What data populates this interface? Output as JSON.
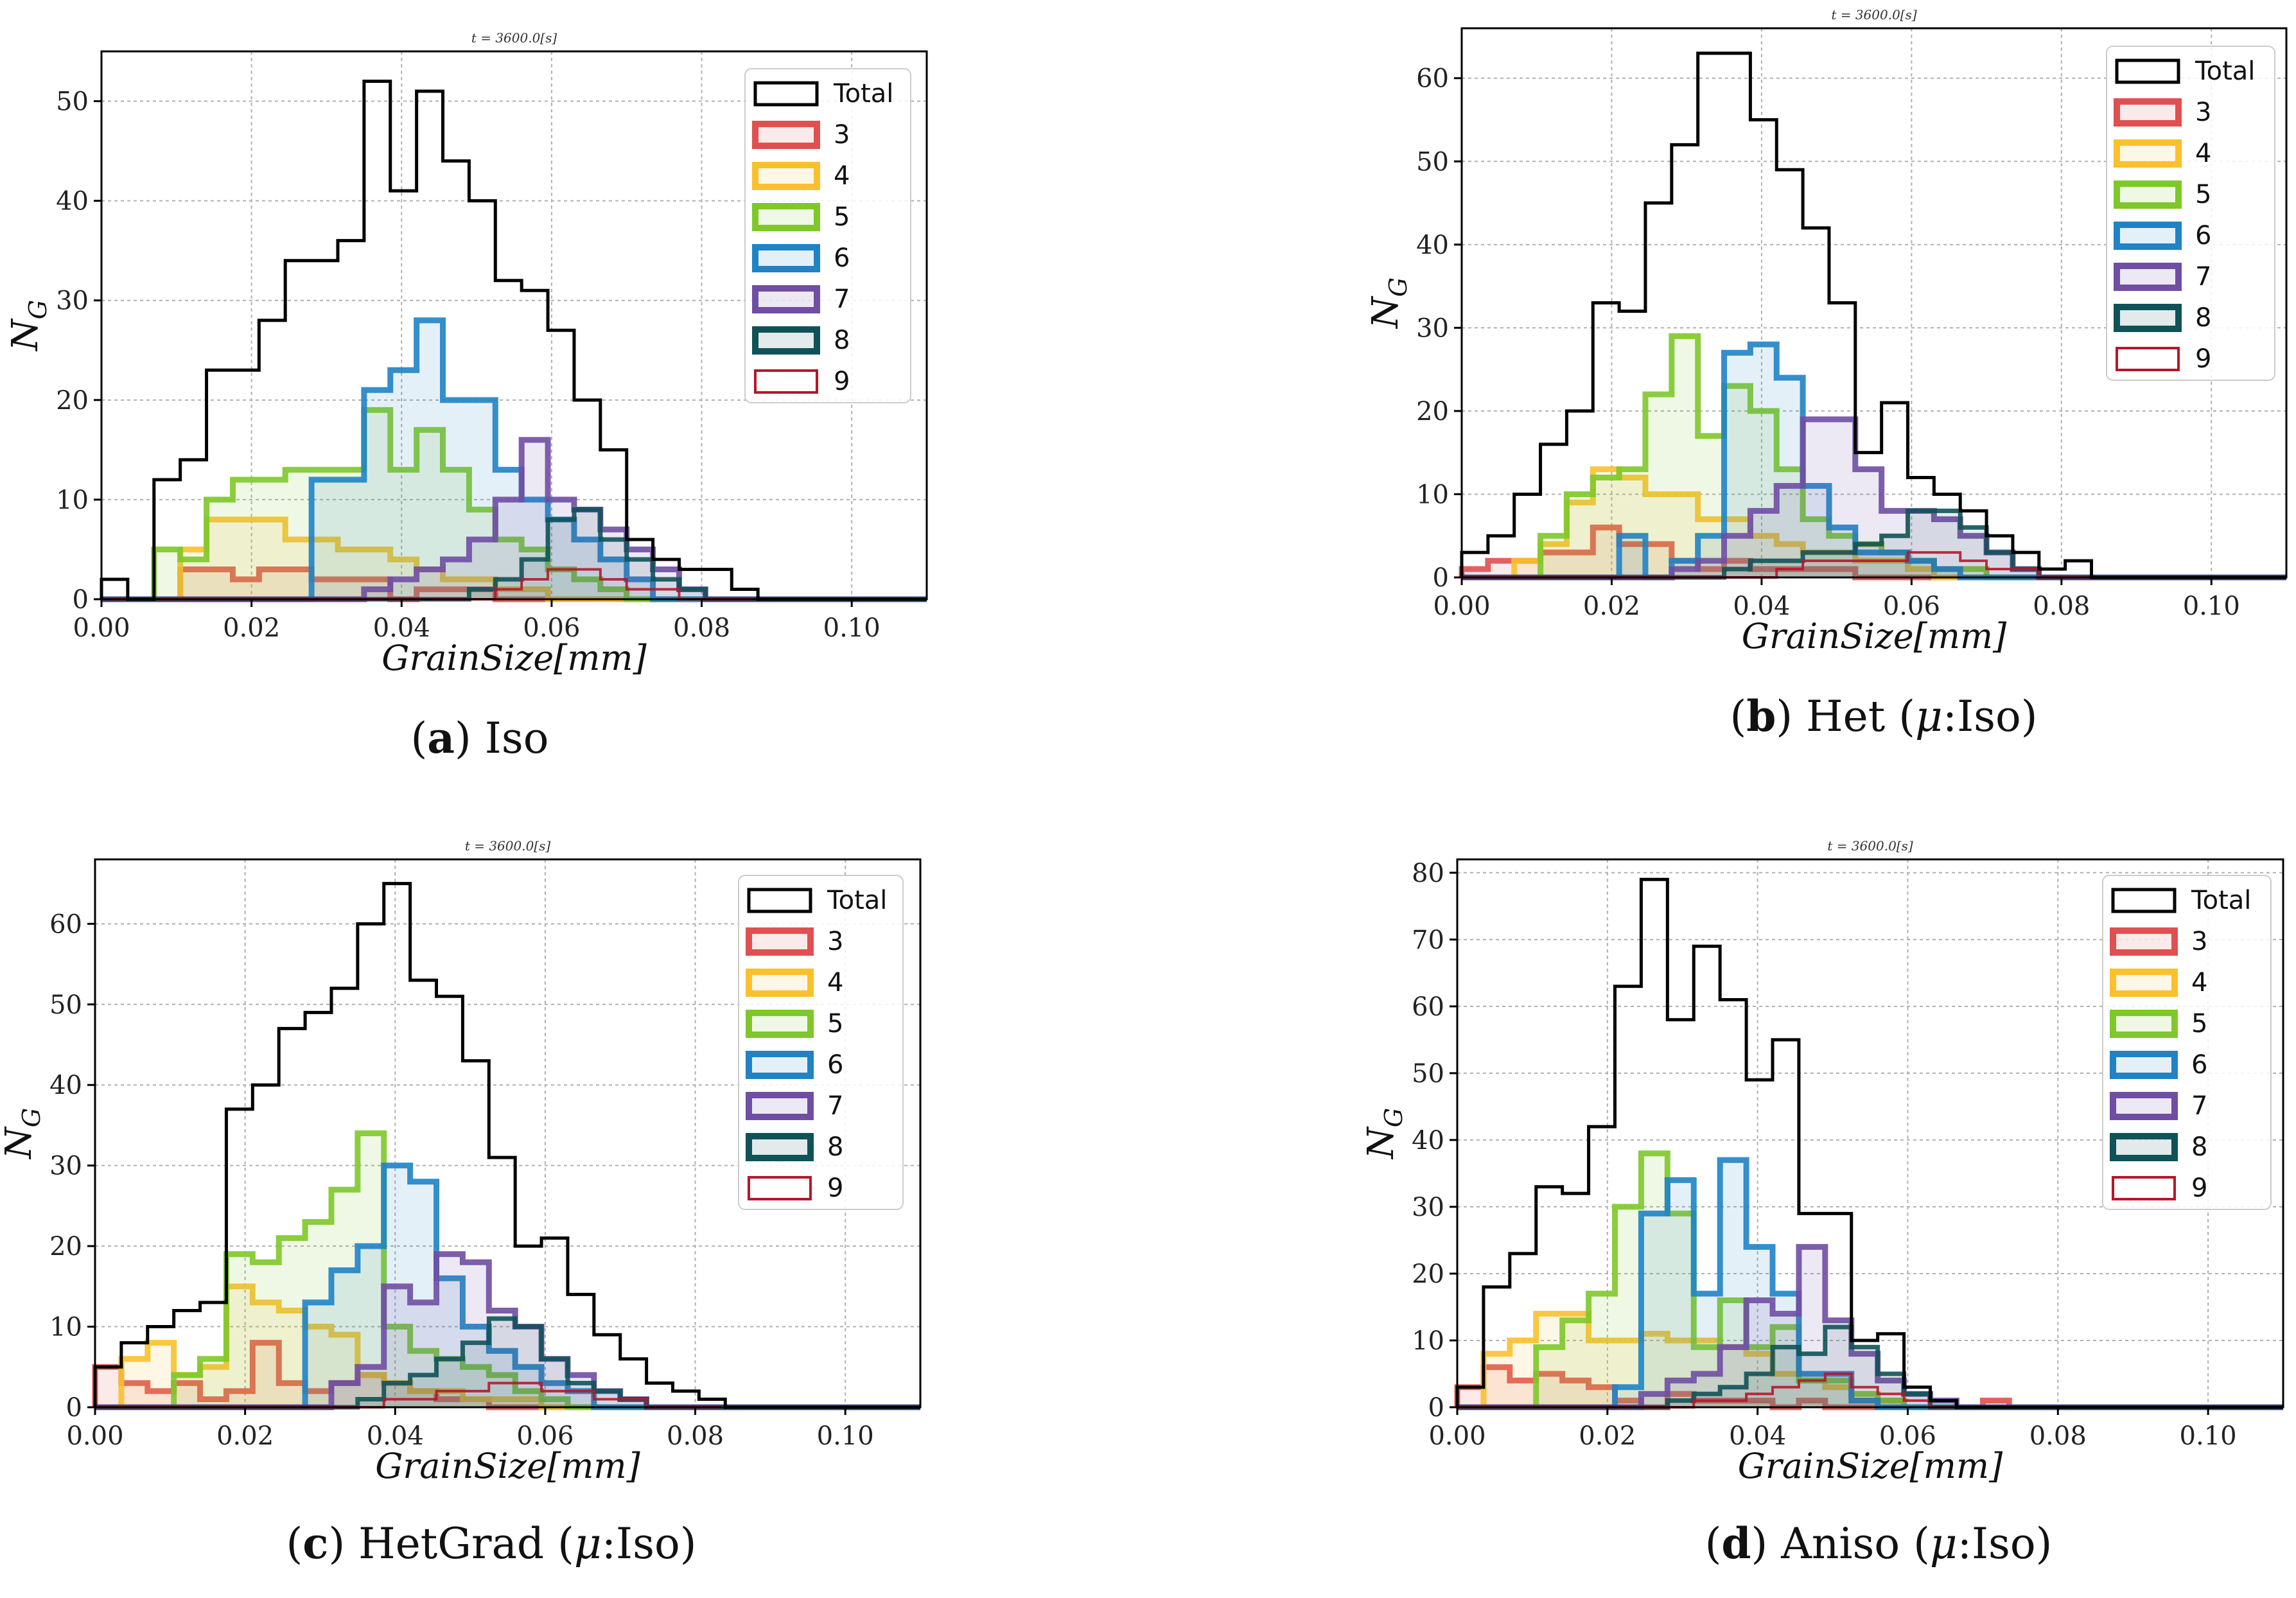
{
  "colors": {
    "Total": "#000000",
    "3": "#e05050",
    "4": "#fbc02d",
    "5": "#7ec82a",
    "6": "#1f83c5",
    "7": "#6f4ea3",
    "8": "#0f5257",
    "9": "#b5172b"
  },
  "legend_labels": [
    "Total",
    "3",
    "4",
    "5",
    "6",
    "7",
    "8",
    "9"
  ],
  "chart_data": [
    {
      "type": "histogram",
      "title": "t = 3600.0[s]",
      "xlabel": "GrainSize[mm]",
      "ylabel": "N_G",
      "xlim": [
        0,
        0.11
      ],
      "ylim": [
        0,
        55
      ],
      "xticks": [
        "0.00",
        "0.02",
        "0.04",
        "0.06",
        "0.08",
        "0.10"
      ],
      "yticks": [
        0,
        10,
        20,
        30,
        40,
        50
      ],
      "bin_width": 0.0035,
      "legend_position": "top-right",
      "grid": true,
      "caption": {
        "label": "(a)",
        "text": "Iso",
        "mu": false
      },
      "series": [
        {
          "name": "Total",
          "values": [
            2,
            0,
            12,
            14,
            23,
            23,
            28,
            34,
            34,
            36,
            52,
            41,
            51,
            44,
            40,
            32,
            31,
            27,
            20,
            15,
            6,
            4,
            3,
            3,
            1
          ]
        },
        {
          "name": "3",
          "values": [
            0,
            0,
            0,
            3,
            3,
            2,
            3,
            3,
            2,
            2,
            2,
            0,
            1,
            1,
            1,
            0,
            0,
            0,
            0,
            0,
            0,
            0,
            0,
            0,
            0
          ]
        },
        {
          "name": "4",
          "values": [
            0,
            0,
            0,
            5,
            8,
            8,
            8,
            6,
            6,
            5,
            5,
            4,
            3,
            2,
            2,
            1,
            1,
            0,
            0,
            0,
            0,
            0,
            0,
            0,
            0
          ]
        },
        {
          "name": "5",
          "values": [
            0,
            0,
            5,
            4,
            10,
            12,
            12,
            13,
            13,
            13,
            19,
            13,
            17,
            13,
            9,
            6,
            5,
            3,
            2,
            1,
            0,
            0,
            0,
            0,
            0
          ]
        },
        {
          "name": "6",
          "values": [
            0,
            0,
            0,
            0,
            0,
            0,
            0,
            0,
            12,
            12,
            21,
            23,
            28,
            20,
            20,
            13,
            10,
            8,
            6,
            4,
            2,
            0,
            0,
            0,
            0
          ]
        },
        {
          "name": "7",
          "values": [
            0,
            0,
            0,
            0,
            0,
            0,
            0,
            0,
            0,
            0,
            1,
            2,
            3,
            4,
            6,
            10,
            16,
            10,
            9,
            7,
            5,
            3,
            1,
            0,
            0
          ]
        },
        {
          "name": "8",
          "values": [
            0,
            0,
            0,
            0,
            0,
            0,
            0,
            0,
            0,
            0,
            0,
            0,
            0,
            0,
            1,
            2,
            4,
            8,
            9,
            6,
            4,
            2,
            1,
            0,
            0
          ]
        },
        {
          "name": "9",
          "values": [
            0,
            0,
            0,
            0,
            0,
            0,
            0,
            0,
            0,
            0,
            0,
            0,
            0,
            0,
            0,
            1,
            2,
            3,
            3,
            2,
            1,
            1,
            0,
            0,
            0
          ]
        }
      ]
    },
    {
      "type": "histogram",
      "title": "t = 3600.0[s]",
      "xlabel": "GrainSize[mm]",
      "ylabel": "N_G",
      "xlim": [
        0,
        0.11
      ],
      "ylim": [
        0,
        66
      ],
      "xticks": [
        "0.00",
        "0.02",
        "0.04",
        "0.06",
        "0.08",
        "0.10"
      ],
      "yticks": [
        0,
        10,
        20,
        30,
        40,
        50,
        60
      ],
      "bin_width": 0.0035,
      "legend_position": "top-right",
      "grid": true,
      "caption": {
        "label": "(b)",
        "text": "Het (",
        "mu": true,
        "after": ":Iso)"
      },
      "series": [
        {
          "name": "Total",
          "values": [
            3,
            5,
            10,
            16,
            20,
            33,
            32,
            45,
            52,
            63,
            63,
            55,
            49,
            42,
            33,
            15,
            21,
            12,
            10,
            8,
            5,
            3,
            1,
            2,
            0
          ]
        },
        {
          "name": "3",
          "values": [
            1,
            2,
            2,
            3,
            3,
            6,
            4,
            4,
            2,
            1,
            2,
            1,
            1,
            1,
            1,
            0,
            0,
            0,
            0,
            0,
            0,
            0,
            0,
            0,
            0
          ]
        },
        {
          "name": "4",
          "values": [
            0,
            0,
            2,
            4,
            9,
            13,
            12,
            10,
            10,
            7,
            7,
            5,
            4,
            3,
            3,
            2,
            2,
            1,
            0,
            0,
            0,
            0,
            0,
            0,
            0
          ]
        },
        {
          "name": "5",
          "values": [
            0,
            0,
            0,
            5,
            10,
            12,
            13,
            22,
            29,
            17,
            23,
            20,
            13,
            7,
            5,
            4,
            3,
            2,
            1,
            1,
            0,
            0,
            0,
            0,
            0
          ]
        },
        {
          "name": "6",
          "values": [
            0,
            0,
            0,
            0,
            0,
            0,
            5,
            0,
            2,
            5,
            27,
            28,
            24,
            11,
            6,
            3,
            3,
            2,
            1,
            0,
            0,
            0,
            0,
            0,
            0
          ]
        },
        {
          "name": "7",
          "values": [
            0,
            0,
            0,
            0,
            0,
            0,
            0,
            0,
            1,
            2,
            5,
            8,
            11,
            19,
            19,
            13,
            8,
            8,
            7,
            5,
            3,
            1,
            0,
            0,
            0
          ]
        },
        {
          "name": "8",
          "values": [
            0,
            0,
            0,
            0,
            0,
            0,
            0,
            0,
            0,
            0,
            1,
            2,
            2,
            3,
            3,
            4,
            5,
            8,
            8,
            6,
            3,
            1,
            0,
            0,
            0
          ]
        },
        {
          "name": "9",
          "values": [
            0,
            0,
            0,
            0,
            0,
            0,
            0,
            0,
            0,
            0,
            0,
            0,
            1,
            2,
            2,
            2,
            2,
            3,
            3,
            2,
            1,
            1,
            0,
            0,
            0
          ]
        }
      ]
    },
    {
      "type": "histogram",
      "title": "t = 3600.0[s]",
      "xlabel": "GrainSize[mm]",
      "ylabel": "N_G",
      "xlim": [
        0,
        0.11
      ],
      "ylim": [
        0,
        68
      ],
      "xticks": [
        "0.00",
        "0.02",
        "0.04",
        "0.06",
        "0.08",
        "0.10"
      ],
      "yticks": [
        0,
        10,
        20,
        30,
        40,
        50,
        60
      ],
      "bin_width": 0.0035,
      "legend_position": "top-right",
      "grid": true,
      "caption": {
        "label": "(c)",
        "text": "HetGrad (",
        "mu": true,
        "after": ":Iso)"
      },
      "series": [
        {
          "name": "Total",
          "values": [
            5,
            8,
            10,
            12,
            13,
            37,
            40,
            47,
            49,
            52,
            60,
            65,
            53,
            51,
            43,
            31,
            20,
            21,
            14,
            9,
            6,
            3,
            2,
            1,
            0
          ]
        },
        {
          "name": "3",
          "values": [
            5,
            3,
            2,
            3,
            1,
            2,
            8,
            3,
            2,
            3,
            4,
            3,
            2,
            1,
            1,
            0,
            0,
            0,
            0,
            0,
            0,
            0,
            0,
            0,
            0
          ]
        },
        {
          "name": "4",
          "values": [
            0,
            6,
            8,
            4,
            5,
            15,
            13,
            12,
            10,
            9,
            4,
            3,
            2,
            2,
            1,
            1,
            1,
            0,
            0,
            0,
            0,
            0,
            0,
            0,
            0
          ]
        },
        {
          "name": "5",
          "values": [
            0,
            0,
            0,
            4,
            6,
            19,
            18,
            21,
            23,
            27,
            34,
            10,
            7,
            6,
            5,
            4,
            2,
            1,
            0,
            0,
            0,
            0,
            0,
            0,
            0
          ]
        },
        {
          "name": "6",
          "values": [
            0,
            0,
            0,
            0,
            0,
            0,
            0,
            0,
            13,
            17,
            20,
            30,
            28,
            16,
            10,
            7,
            5,
            3,
            2,
            0,
            0,
            0,
            0,
            0,
            0
          ]
        },
        {
          "name": "7",
          "values": [
            0,
            0,
            0,
            0,
            0,
            0,
            0,
            0,
            0,
            3,
            5,
            15,
            13,
            19,
            18,
            12,
            10,
            6,
            4,
            2,
            1,
            0,
            0,
            0,
            0
          ]
        },
        {
          "name": "8",
          "values": [
            0,
            0,
            0,
            0,
            0,
            0,
            0,
            0,
            0,
            0,
            1,
            3,
            4,
            6,
            8,
            11,
            10,
            6,
            3,
            2,
            1,
            0,
            0,
            0,
            0
          ]
        },
        {
          "name": "9",
          "values": [
            0,
            0,
            0,
            0,
            0,
            0,
            0,
            0,
            0,
            0,
            0,
            1,
            1,
            2,
            2,
            3,
            3,
            2,
            2,
            1,
            1,
            0,
            0,
            0,
            0
          ]
        }
      ]
    },
    {
      "type": "histogram",
      "title": "t = 3600.0[s]",
      "xlabel": "GrainSize[mm]",
      "ylabel": "N_G",
      "xlim": [
        0,
        0.11
      ],
      "ylim": [
        0,
        82
      ],
      "xticks": [
        "0.00",
        "0.02",
        "0.04",
        "0.06",
        "0.08",
        "0.10"
      ],
      "yticks": [
        0,
        10,
        20,
        30,
        40,
        50,
        60,
        70,
        80
      ],
      "bin_width": 0.0035,
      "legend_position": "top-right",
      "grid": true,
      "caption": {
        "label": "(d)",
        "text": "Aniso (",
        "mu": true,
        "after": ":Iso)"
      },
      "series": [
        {
          "name": "Total",
          "values": [
            3,
            18,
            23,
            33,
            32,
            42,
            63,
            79,
            58,
            69,
            61,
            49,
            55,
            29,
            29,
            10,
            11,
            3,
            1,
            0,
            0,
            0,
            0,
            0,
            0
          ]
        },
        {
          "name": "3",
          "values": [
            3,
            6,
            4,
            5,
            4,
            3,
            1,
            0,
            2,
            1,
            1,
            1,
            0,
            1,
            0,
            0,
            0,
            0,
            0,
            0,
            1,
            0,
            0,
            0,
            0
          ]
        },
        {
          "name": "4",
          "values": [
            0,
            8,
            10,
            14,
            14,
            10,
            10,
            11,
            10,
            10,
            9,
            8,
            5,
            4,
            3,
            1,
            1,
            0,
            0,
            0,
            0,
            0,
            0,
            0,
            0
          ]
        },
        {
          "name": "5",
          "values": [
            0,
            0,
            0,
            9,
            13,
            17,
            30,
            38,
            29,
            9,
            16,
            9,
            12,
            4,
            4,
            2,
            1,
            0,
            0,
            0,
            0,
            0,
            0,
            0,
            0
          ]
        },
        {
          "name": "6",
          "values": [
            0,
            0,
            0,
            0,
            0,
            0,
            3,
            29,
            34,
            17,
            37,
            24,
            17,
            5,
            5,
            1,
            0,
            0,
            0,
            0,
            0,
            0,
            0,
            0,
            0
          ]
        },
        {
          "name": "7",
          "values": [
            0,
            0,
            0,
            0,
            0,
            0,
            0,
            2,
            4,
            5,
            9,
            16,
            14,
            24,
            13,
            8,
            4,
            2,
            1,
            0,
            0,
            0,
            0,
            0,
            0
          ]
        },
        {
          "name": "8",
          "values": [
            0,
            0,
            0,
            0,
            0,
            0,
            0,
            0,
            1,
            2,
            3,
            5,
            9,
            8,
            12,
            9,
            5,
            2,
            0,
            0,
            0,
            0,
            0,
            0,
            0
          ]
        },
        {
          "name": "9",
          "values": [
            0,
            0,
            0,
            0,
            0,
            0,
            0,
            0,
            0,
            1,
            1,
            2,
            3,
            4,
            5,
            3,
            2,
            1,
            0,
            0,
            0,
            0,
            0,
            0,
            0
          ]
        }
      ]
    }
  ]
}
